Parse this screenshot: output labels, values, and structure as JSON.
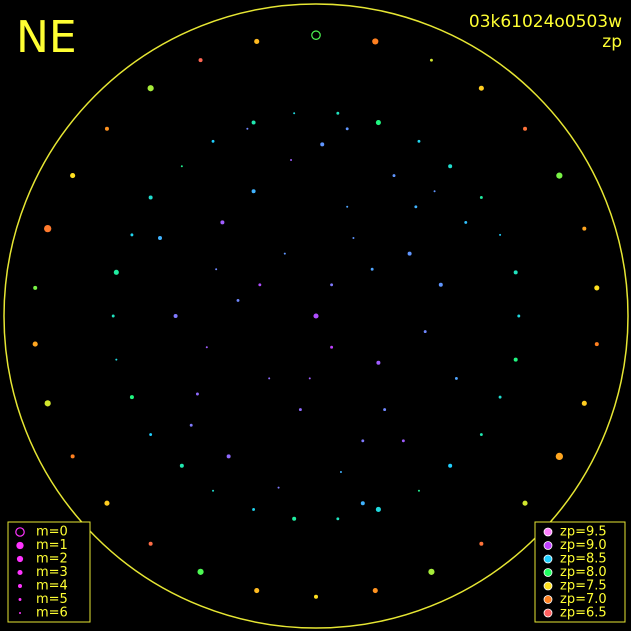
{
  "chart_data": {
    "type": "scatter",
    "label": "NE",
    "title": "03k61024o0503w",
    "subtitle": "zp",
    "xlim": [
      -1,
      1
    ],
    "ylim": [
      -1,
      1
    ],
    "size_legend": [
      {
        "value": 0,
        "label": "m=0"
      },
      {
        "value": 1,
        "label": "m=1"
      },
      {
        "value": 2,
        "label": "m=2"
      },
      {
        "value": 3,
        "label": "m=3"
      },
      {
        "value": 4,
        "label": "m=4"
      },
      {
        "value": 5,
        "label": "m=5"
      },
      {
        "value": 6,
        "label": "m=6"
      }
    ],
    "size_color": "#ff33ff",
    "color_legend": [
      {
        "value": 9.5,
        "label": "zp=9.5",
        "color": "#ff80ff"
      },
      {
        "value": 9.0,
        "label": "zp=9.0",
        "color": "#c040ff"
      },
      {
        "value": 8.5,
        "label": "zp=8.5",
        "color": "#20d0ff"
      },
      {
        "value": 8.0,
        "label": "zp=8.0",
        "color": "#20ff60"
      },
      {
        "value": 7.5,
        "label": "zp=7.5",
        "color": "#ffe020"
      },
      {
        "value": 7.0,
        "label": "zp=7.0",
        "color": "#ff8020"
      },
      {
        "value": 6.5,
        "label": "zp=6.5",
        "color": "#ff6060"
      }
    ],
    "points": {
      "x": [
        0.05,
        -0.1,
        0.2,
        -0.25,
        0.1,
        -0.05,
        0.3,
        -0.35,
        0.15,
        -0.2,
        0.0,
        0.25,
        -0.15,
        0.35,
        -0.3,
        0.08,
        -0.4,
        0.4,
        0.18,
        -0.08,
        0.22,
        -0.28,
        0.12,
        -0.18,
        0.32,
        -0.12,
        0.02,
        0.28,
        -0.32,
        0.45,
        -0.45,
        0.05,
        0.38,
        -0.38,
        0.15,
        -0.22,
        0.48,
        -0.5,
        0.1,
        -0.02,
        0.65,
        0.64,
        0.59,
        0.53,
        0.43,
        0.33,
        0.2,
        0.07,
        -0.07,
        -0.2,
        -0.33,
        -0.43,
        -0.53,
        -0.59,
        -0.64,
        -0.65,
        -0.64,
        -0.59,
        -0.53,
        -0.43,
        -0.33,
        -0.2,
        -0.07,
        0.07,
        0.2,
        0.33,
        0.43,
        0.53,
        0.59,
        0.64,
        0.9,
        0.86,
        0.78,
        0.67,
        0.53,
        0.37,
        0.19,
        0,
        -0.19,
        -0.37,
        -0.53,
        -0.67,
        -0.78,
        -0.86,
        -0.9,
        -0.9,
        -0.86,
        -0.78,
        -0.67,
        -0.53,
        -0.37,
        -0.19,
        0,
        0.19,
        0.37,
        0.53,
        0.67,
        0.78,
        0.86,
        0.9
      ],
      "y": [
        0.1,
        0.2,
        -0.15,
        0.05,
        0.35,
        -0.3,
        0.2,
        -0.1,
        -0.4,
        0.4,
        0.0,
        0.45,
        -0.2,
        -0.05,
        0.3,
        -0.5,
        -0.35,
        0.1,
        0.15,
        0.5,
        -0.3,
        -0.45,
        0.25,
        0.1,
        0.35,
        -0.55,
        0.55,
        -0.4,
        0.15,
        -0.2,
        0.0,
        -0.1,
        0.4,
        -0.25,
        -0.6,
        0.6,
        0.3,
        0.25,
        0.6,
        -0.2,
        0,
        0.14,
        0.26,
        0.38,
        0.48,
        0.56,
        0.62,
        0.65,
        0.65,
        0.62,
        0.56,
        0.48,
        0.38,
        0.26,
        0.14,
        0,
        -0.14,
        -0.26,
        -0.38,
        -0.48,
        -0.56,
        -0.62,
        -0.65,
        -0.65,
        -0.62,
        -0.56,
        -0.48,
        -0.38,
        -0.26,
        -0.14,
        0.09,
        0.28,
        0.45,
        0.6,
        0.73,
        0.82,
        0.88,
        0.9,
        0.88,
        0.82,
        0.73,
        0.6,
        0.45,
        0.28,
        0.09,
        -0.09,
        -0.28,
        -0.45,
        -0.6,
        -0.73,
        -0.82,
        -0.88,
        -0.9,
        -0.88,
        -0.82,
        -0.73,
        -0.6,
        -0.45,
        -0.28,
        -0.09
      ],
      "zp": [
        8.8,
        8.7,
        8.9,
        8.75,
        8.65,
        8.85,
        8.7,
        8.9,
        8.8,
        8.6,
        8.95,
        8.7,
        8.85,
        8.75,
        8.9,
        8.6,
        8.8,
        8.7,
        8.65,
        8.9,
        8.75,
        8.85,
        8.7,
        8.95,
        8.6,
        8.8,
        8.7,
        8.9,
        8.75,
        8.65,
        8.8,
        9.0,
        8.7,
        8.85,
        8.6,
        8.75,
        8.55,
        8.6,
        8.7,
        8.9,
        8.4,
        8.3,
        8.5,
        8.2,
        8.35,
        8.45,
        8.1,
        8.3,
        8.4,
        8.25,
        8.5,
        8.15,
        8.35,
        8.45,
        8.2,
        8.3,
        8.4,
        8.1,
        8.5,
        8.25,
        8.35,
        8.45,
        8.2,
        8.3,
        8.4,
        8.15,
        8.5,
        8.25,
        8.35,
        8.1,
        7.5,
        7.2,
        7.8,
        6.8,
        7.4,
        7.6,
        7.0,
        7.9,
        7.3,
        6.6,
        7.7,
        7.1,
        7.5,
        6.9,
        7.8,
        7.2,
        7.6,
        7.0,
        7.4,
        6.7,
        7.9,
        7.3,
        7.5,
        7.1,
        7.7,
        6.8,
        7.6,
        7.2,
        7.4,
        7.0
      ],
      "m": [
        5,
        6,
        4,
        5,
        6,
        5,
        4,
        6,
        5,
        4,
        3,
        5,
        6,
        5,
        4,
        6,
        5,
        4,
        5,
        6,
        5,
        4,
        6,
        5,
        5,
        6,
        4,
        5,
        6,
        5,
        4,
        5,
        6,
        5,
        4,
        6,
        5,
        4,
        5,
        6,
        5,
        4,
        6,
        5,
        4,
        5,
        3,
        5,
        6,
        4,
        5,
        6,
        4,
        5,
        3,
        5,
        6,
        4,
        5,
        4,
        6,
        5,
        4,
        5,
        3,
        6,
        4,
        5,
        5,
        4,
        3,
        4,
        2,
        4,
        3,
        5,
        2,
        0,
        3,
        4,
        2,
        4,
        3,
        1,
        4,
        3,
        2,
        4,
        3,
        4,
        2,
        3,
        4,
        3,
        2,
        4,
        3,
        1,
        3,
        4
      ]
    }
  }
}
